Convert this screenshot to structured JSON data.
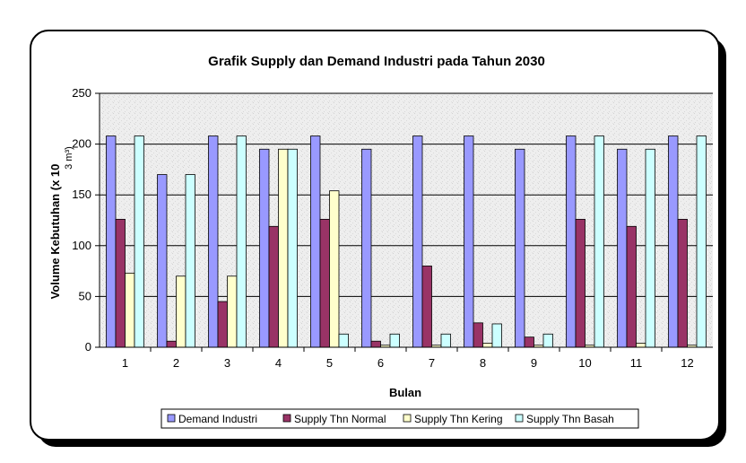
{
  "chart_data": {
    "type": "bar",
    "title": "Grafik Supply dan Demand Industri pada Tahun 2030",
    "xlabel": "Bulan",
    "ylabel": "Volume Kebutuhan (x 10",
    "ylabel_unit": "3 m³)",
    "ylim": [
      0,
      250
    ],
    "yticks": [
      0,
      50,
      100,
      150,
      200,
      250
    ],
    "grid": true,
    "legend_position": "bottom",
    "categories": [
      "1",
      "2",
      "3",
      "4",
      "5",
      "6",
      "7",
      "8",
      "9",
      "10",
      "11",
      "12"
    ],
    "series": [
      {
        "name": "Demand Industri",
        "color": "#9999ff",
        "values": [
          208,
          170,
          208,
          195,
          208,
          195,
          208,
          208,
          195,
          208,
          195,
          208
        ]
      },
      {
        "name": "Supply Thn Normal",
        "color": "#993366",
        "values": [
          126,
          6,
          45,
          119,
          126,
          6,
          80,
          24,
          10,
          126,
          119,
          126
        ]
      },
      {
        "name": "Supply Thn Kering",
        "color": "#ffffcc",
        "values": [
          73,
          70,
          70,
          195,
          154,
          2,
          2,
          4,
          2,
          2,
          4,
          2
        ]
      },
      {
        "name": "Supply Thn Basah",
        "color": "#ccffff",
        "values": [
          208,
          170,
          208,
          195,
          13,
          13,
          13,
          23,
          13,
          208,
          195,
          208
        ]
      }
    ]
  }
}
